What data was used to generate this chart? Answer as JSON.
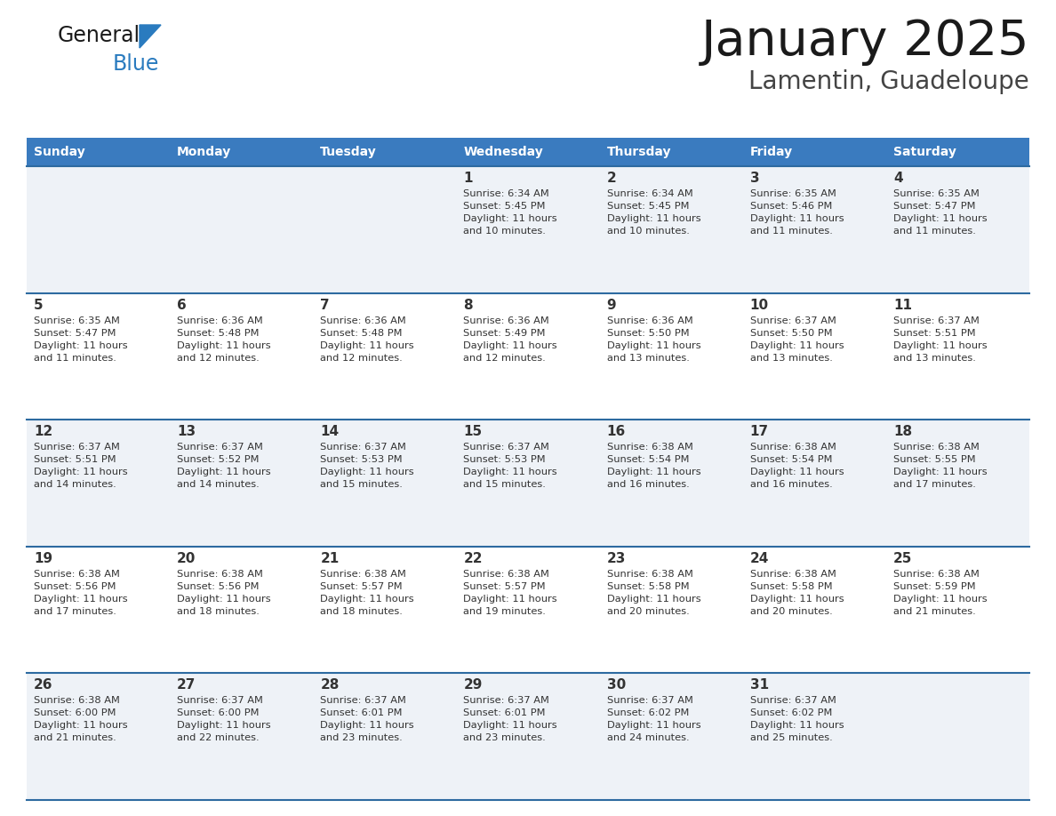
{
  "title": "January 2025",
  "subtitle": "Lamentin, Guadeloupe",
  "days_of_week": [
    "Sunday",
    "Monday",
    "Tuesday",
    "Wednesday",
    "Thursday",
    "Friday",
    "Saturday"
  ],
  "header_bg": "#3a7bbf",
  "header_text": "#ffffff",
  "row_bg_odd": "#eef2f7",
  "row_bg_even": "#ffffff",
  "separator_color": "#2d6aa0",
  "text_color": "#333333",
  "calendar": [
    [
      {
        "day": "",
        "info": ""
      },
      {
        "day": "",
        "info": ""
      },
      {
        "day": "",
        "info": ""
      },
      {
        "day": "1",
        "info": "Sunrise: 6:34 AM\nSunset: 5:45 PM\nDaylight: 11 hours\nand 10 minutes."
      },
      {
        "day": "2",
        "info": "Sunrise: 6:34 AM\nSunset: 5:45 PM\nDaylight: 11 hours\nand 10 minutes."
      },
      {
        "day": "3",
        "info": "Sunrise: 6:35 AM\nSunset: 5:46 PM\nDaylight: 11 hours\nand 11 minutes."
      },
      {
        "day": "4",
        "info": "Sunrise: 6:35 AM\nSunset: 5:47 PM\nDaylight: 11 hours\nand 11 minutes."
      }
    ],
    [
      {
        "day": "5",
        "info": "Sunrise: 6:35 AM\nSunset: 5:47 PM\nDaylight: 11 hours\nand 11 minutes."
      },
      {
        "day": "6",
        "info": "Sunrise: 6:36 AM\nSunset: 5:48 PM\nDaylight: 11 hours\nand 12 minutes."
      },
      {
        "day": "7",
        "info": "Sunrise: 6:36 AM\nSunset: 5:48 PM\nDaylight: 11 hours\nand 12 minutes."
      },
      {
        "day": "8",
        "info": "Sunrise: 6:36 AM\nSunset: 5:49 PM\nDaylight: 11 hours\nand 12 minutes."
      },
      {
        "day": "9",
        "info": "Sunrise: 6:36 AM\nSunset: 5:50 PM\nDaylight: 11 hours\nand 13 minutes."
      },
      {
        "day": "10",
        "info": "Sunrise: 6:37 AM\nSunset: 5:50 PM\nDaylight: 11 hours\nand 13 minutes."
      },
      {
        "day": "11",
        "info": "Sunrise: 6:37 AM\nSunset: 5:51 PM\nDaylight: 11 hours\nand 13 minutes."
      }
    ],
    [
      {
        "day": "12",
        "info": "Sunrise: 6:37 AM\nSunset: 5:51 PM\nDaylight: 11 hours\nand 14 minutes."
      },
      {
        "day": "13",
        "info": "Sunrise: 6:37 AM\nSunset: 5:52 PM\nDaylight: 11 hours\nand 14 minutes."
      },
      {
        "day": "14",
        "info": "Sunrise: 6:37 AM\nSunset: 5:53 PM\nDaylight: 11 hours\nand 15 minutes."
      },
      {
        "day": "15",
        "info": "Sunrise: 6:37 AM\nSunset: 5:53 PM\nDaylight: 11 hours\nand 15 minutes."
      },
      {
        "day": "16",
        "info": "Sunrise: 6:38 AM\nSunset: 5:54 PM\nDaylight: 11 hours\nand 16 minutes."
      },
      {
        "day": "17",
        "info": "Sunrise: 6:38 AM\nSunset: 5:54 PM\nDaylight: 11 hours\nand 16 minutes."
      },
      {
        "day": "18",
        "info": "Sunrise: 6:38 AM\nSunset: 5:55 PM\nDaylight: 11 hours\nand 17 minutes."
      }
    ],
    [
      {
        "day": "19",
        "info": "Sunrise: 6:38 AM\nSunset: 5:56 PM\nDaylight: 11 hours\nand 17 minutes."
      },
      {
        "day": "20",
        "info": "Sunrise: 6:38 AM\nSunset: 5:56 PM\nDaylight: 11 hours\nand 18 minutes."
      },
      {
        "day": "21",
        "info": "Sunrise: 6:38 AM\nSunset: 5:57 PM\nDaylight: 11 hours\nand 18 minutes."
      },
      {
        "day": "22",
        "info": "Sunrise: 6:38 AM\nSunset: 5:57 PM\nDaylight: 11 hours\nand 19 minutes."
      },
      {
        "day": "23",
        "info": "Sunrise: 6:38 AM\nSunset: 5:58 PM\nDaylight: 11 hours\nand 20 minutes."
      },
      {
        "day": "24",
        "info": "Sunrise: 6:38 AM\nSunset: 5:58 PM\nDaylight: 11 hours\nand 20 minutes."
      },
      {
        "day": "25",
        "info": "Sunrise: 6:38 AM\nSunset: 5:59 PM\nDaylight: 11 hours\nand 21 minutes."
      }
    ],
    [
      {
        "day": "26",
        "info": "Sunrise: 6:38 AM\nSunset: 6:00 PM\nDaylight: 11 hours\nand 21 minutes."
      },
      {
        "day": "27",
        "info": "Sunrise: 6:37 AM\nSunset: 6:00 PM\nDaylight: 11 hours\nand 22 minutes."
      },
      {
        "day": "28",
        "info": "Sunrise: 6:37 AM\nSunset: 6:01 PM\nDaylight: 11 hours\nand 23 minutes."
      },
      {
        "day": "29",
        "info": "Sunrise: 6:37 AM\nSunset: 6:01 PM\nDaylight: 11 hours\nand 23 minutes."
      },
      {
        "day": "30",
        "info": "Sunrise: 6:37 AM\nSunset: 6:02 PM\nDaylight: 11 hours\nand 24 minutes."
      },
      {
        "day": "31",
        "info": "Sunrise: 6:37 AM\nSunset: 6:02 PM\nDaylight: 11 hours\nand 25 minutes."
      },
      {
        "day": "",
        "info": ""
      }
    ]
  ],
  "logo_color_general": "#1a1a1a",
  "logo_color_blue": "#2a7bbf",
  "title_color": "#1a1a1a",
  "subtitle_color": "#444444"
}
